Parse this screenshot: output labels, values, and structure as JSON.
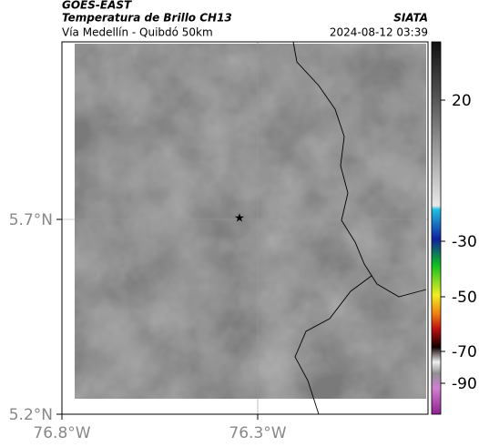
{
  "header": {
    "title": "GOES-EAST",
    "subtitle": "Temperatura de Brillo CH13",
    "location": "Vía Medellín - Quibdó 50km",
    "source": "SIATA",
    "datetime": "2024-08-12 03:39"
  },
  "map": {
    "lat_labels": [
      "5.7°N",
      "5.2°N"
    ],
    "lon_labels": [
      "76.8°W",
      "76.3°W"
    ]
  },
  "colorbar": {
    "ticks": [
      20,
      -30,
      -50,
      -70,
      -90
    ]
  }
}
